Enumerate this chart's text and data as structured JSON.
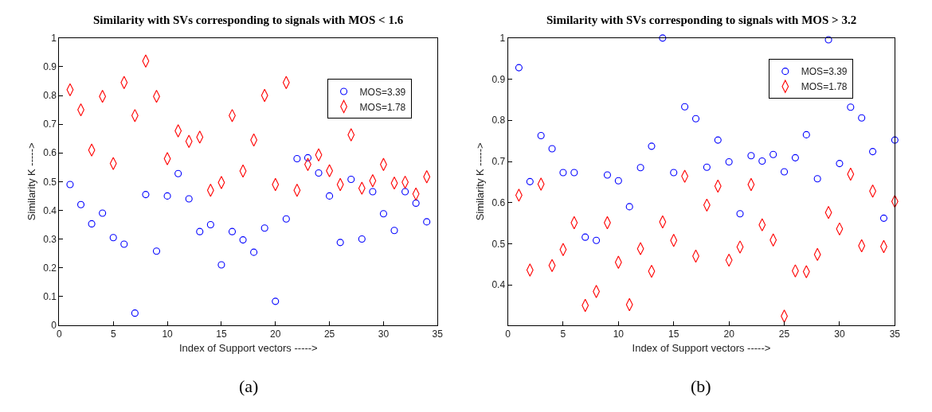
{
  "chart_data": [
    {
      "type": "scatter",
      "title": "Similarity with SVs corresponding to signals with MOS < 1.6",
      "xlabel": "Index of Support vectors ----->",
      "ylabel": "Similarity K ----->",
      "annotations": [
        "(a)"
      ],
      "x": [
        1,
        2,
        3,
        4,
        5,
        6,
        7,
        8,
        9,
        10,
        11,
        12,
        13,
        14,
        15,
        16,
        17,
        18,
        19,
        20,
        21,
        22,
        23,
        24,
        25,
        26,
        27,
        28,
        29,
        30,
        31,
        32,
        33,
        34
      ],
      "xlim": [
        0,
        35
      ],
      "xticks": [
        0,
        5,
        10,
        15,
        20,
        25,
        30,
        35
      ],
      "ylim": [
        0,
        1
      ],
      "yticks": [
        0,
        0.1,
        0.2,
        0.3,
        0.4,
        0.5,
        0.6,
        0.7,
        0.8,
        0.9,
        1
      ],
      "legend": "top right",
      "series": [
        {
          "name": "MOS=3.39",
          "color": "#0000ff",
          "marker": "circle",
          "values": [
            0.49,
            0.42,
            0.353,
            0.39,
            0.305,
            0.282,
            0.042,
            0.455,
            0.258,
            0.45,
            0.528,
            0.44,
            0.326,
            0.35,
            0.21,
            0.326,
            0.297,
            0.254,
            0.338,
            0.083,
            0.37,
            0.58,
            0.583,
            0.53,
            0.45,
            0.288,
            0.508,
            0.3,
            0.465,
            0.388,
            0.33,
            0.465,
            0.425,
            0.36
          ]
        },
        {
          "name": "MOS=1.78",
          "color": "#ff0000",
          "marker": "diamond",
          "values": [
            0.82,
            0.75,
            0.61,
            0.797,
            0.563,
            0.845,
            0.73,
            0.92,
            0.797,
            0.58,
            0.677,
            0.64,
            0.655,
            0.47,
            0.497,
            0.73,
            0.537,
            0.645,
            0.8,
            0.49,
            0.845,
            0.47,
            0.56,
            0.593,
            0.538,
            0.49,
            0.663,
            0.477,
            0.503,
            0.56,
            0.495,
            0.498,
            0.457,
            0.517
          ]
        }
      ]
    },
    {
      "type": "scatter",
      "title": "Similarity with SVs corresponding to signals with MOS > 3.2",
      "xlabel": "Index of Support vectors ----->",
      "ylabel": "Similarity K ----->",
      "annotations": [
        "(b)"
      ],
      "x": [
        1,
        2,
        3,
        4,
        5,
        6,
        7,
        8,
        9,
        10,
        11,
        12,
        13,
        14,
        15,
        16,
        17,
        18,
        19,
        20,
        21,
        22,
        23,
        24,
        25,
        26,
        27,
        28,
        29,
        30,
        31,
        32,
        33,
        34,
        35
      ],
      "xlim": [
        0,
        35
      ],
      "xticks": [
        0,
        5,
        10,
        15,
        20,
        25,
        30,
        35
      ],
      "ylim": [
        0.302,
        1
      ],
      "yticks": [
        0.4,
        0.5,
        0.6,
        0.7,
        0.8,
        0.9,
        1
      ],
      "legend": "top right",
      "series": [
        {
          "name": "MOS=3.39",
          "color": "#0000ff",
          "marker": "circle",
          "values": [
            0.928,
            0.651,
            0.763,
            0.731,
            0.673,
            0.673,
            0.516,
            0.508,
            0.667,
            0.653,
            0.59,
            0.685,
            0.737,
            1.0,
            0.673,
            0.833,
            0.804,
            0.686,
            0.752,
            0.699,
            0.573,
            0.714,
            0.701,
            0.717,
            0.675,
            0.709,
            0.765,
            0.658,
            0.996,
            0.695,
            0.832,
            0.806,
            0.724,
            0.562,
            0.752
          ]
        },
        {
          "name": "MOS=1.78",
          "color": "#ff0000",
          "marker": "diamond",
          "values": [
            0.618,
            0.436,
            0.645,
            0.447,
            0.486,
            0.551,
            0.35,
            0.384,
            0.551,
            0.455,
            0.352,
            0.488,
            0.433,
            0.553,
            0.508,
            0.664,
            0.47,
            0.594,
            0.64,
            0.46,
            0.492,
            0.644,
            0.546,
            0.509,
            0.324,
            0.434,
            0.432,
            0.474,
            0.576,
            0.536,
            0.669,
            0.495,
            0.628,
            0.493,
            0.603
          ]
        }
      ]
    }
  ]
}
